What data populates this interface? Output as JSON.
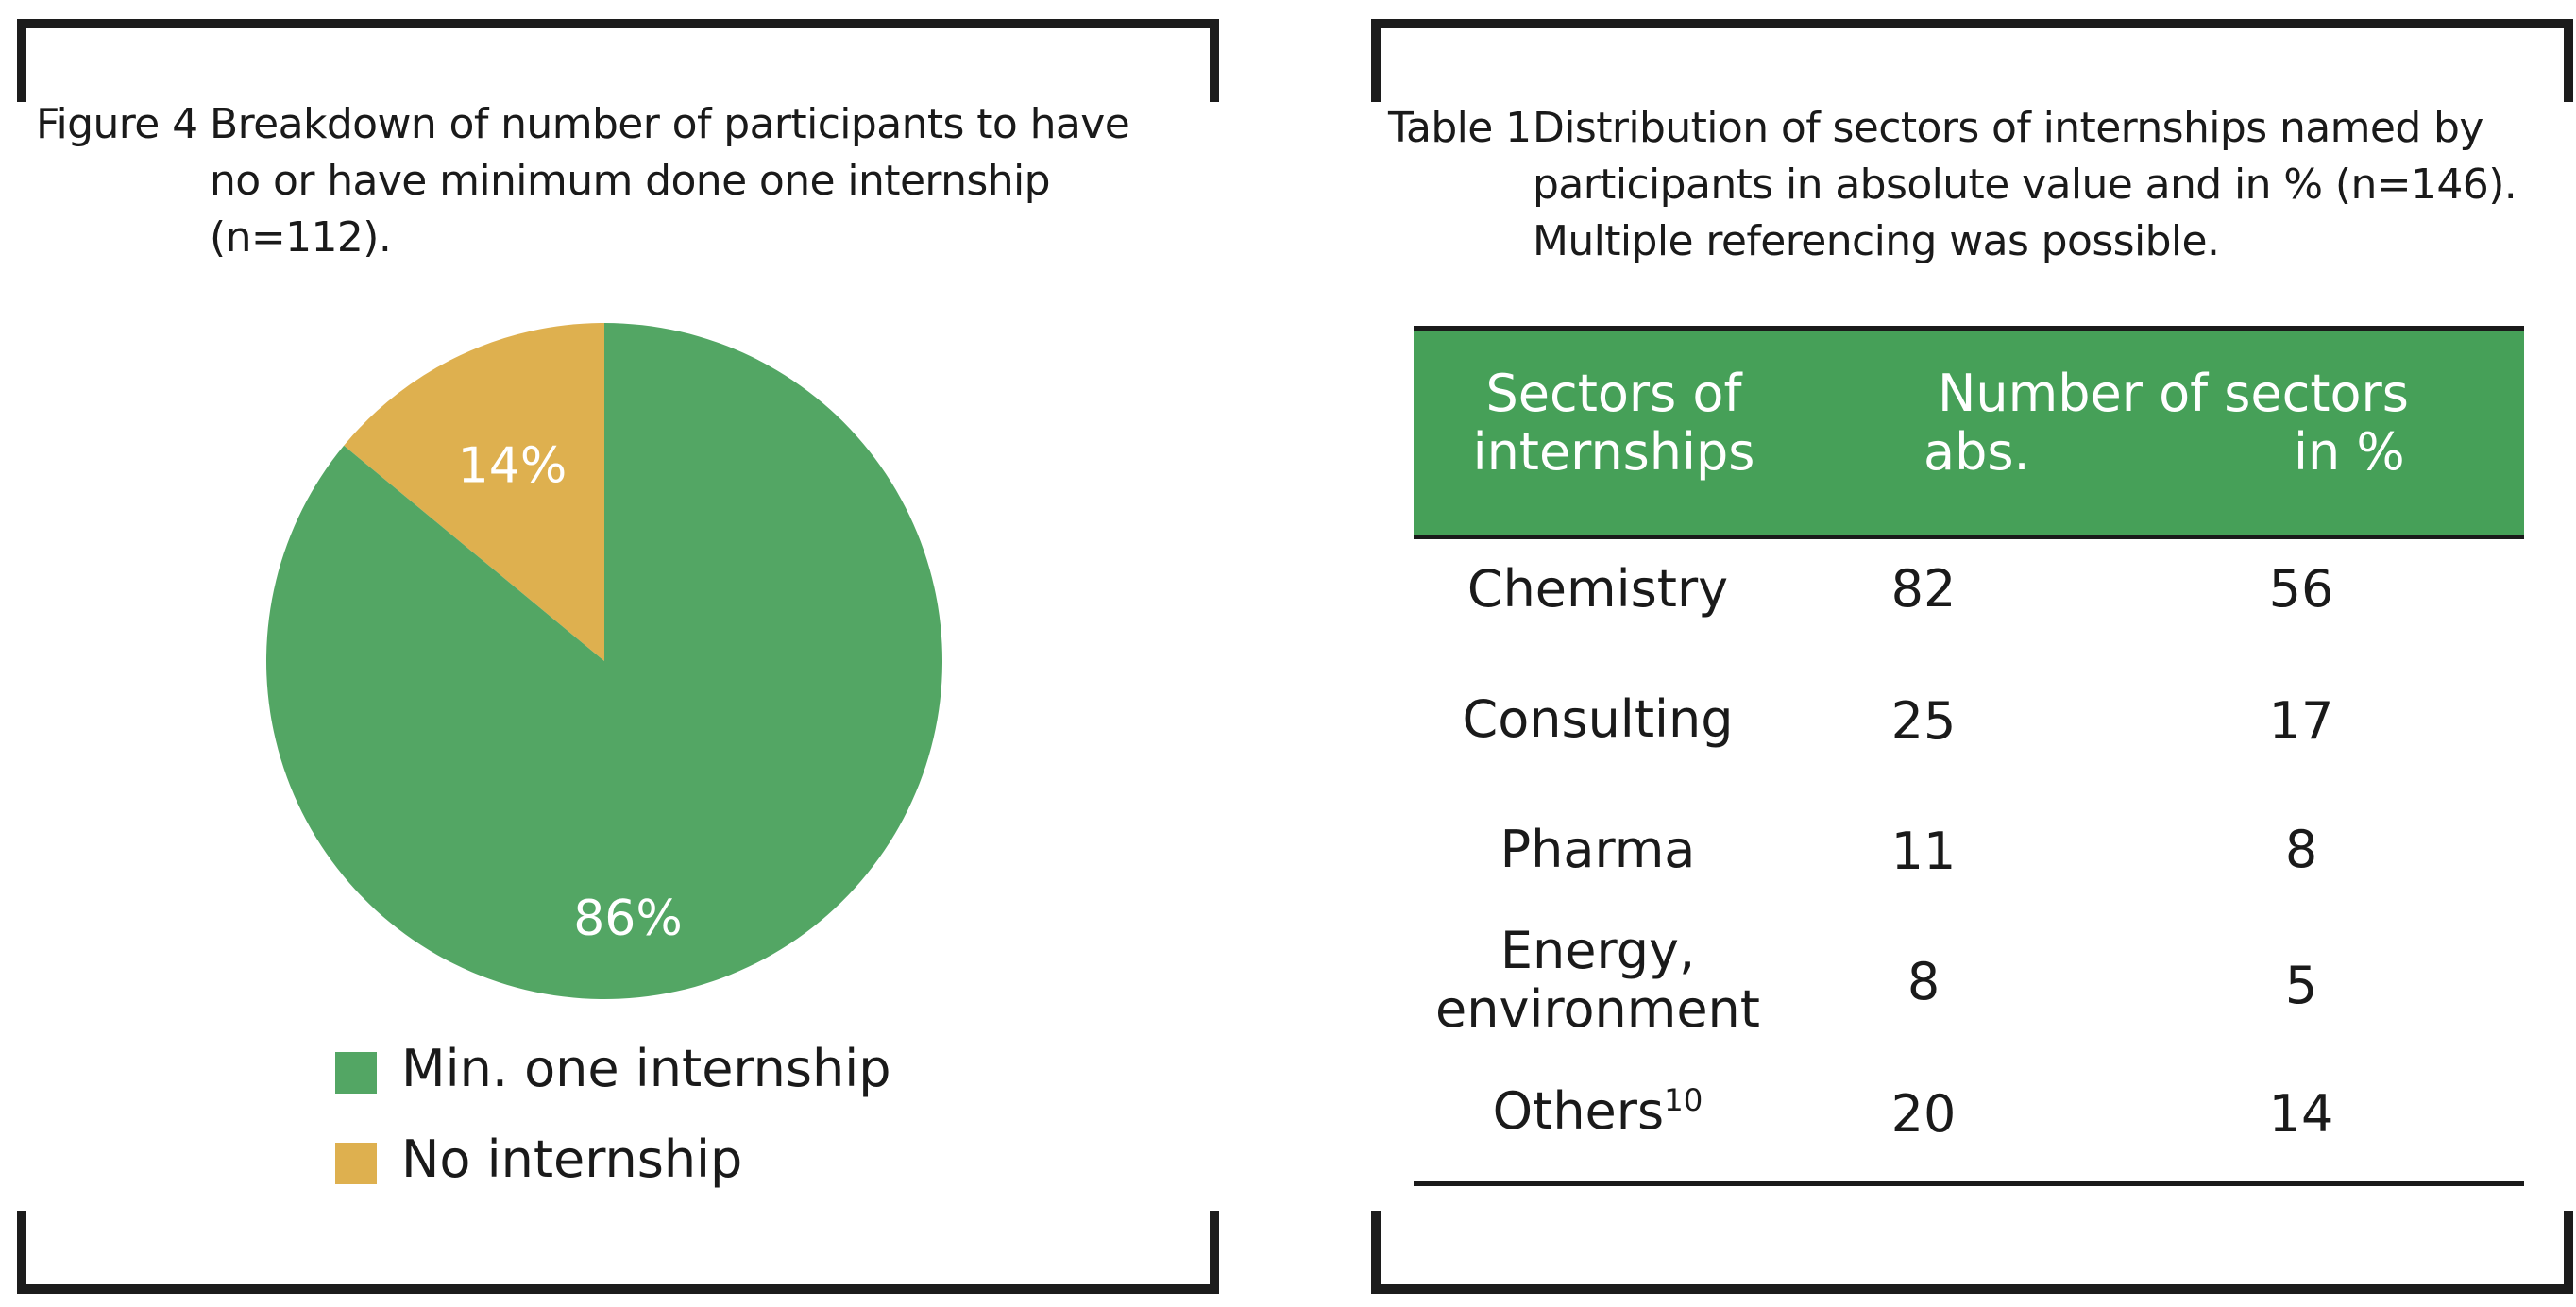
{
  "figure": {
    "label": "Figure 4",
    "caption": "Breakdown of number of participants to have\nno or have minimum done one internship\n(n=112)."
  },
  "table": {
    "label": "Table 1",
    "caption": "Distribution of sectors of internships named by\nparticipants in absolute value and in % (n=146).\nMultiple referencing was possible.",
    "header": {
      "sector": "Sectors of\ninternships",
      "group": "Number of sectors",
      "abs": "abs.",
      "pct": "in %"
    },
    "rows": [
      {
        "sector": "Chemistry",
        "abs": "82",
        "pct": "56"
      },
      {
        "sector": "Consulting",
        "abs": "25",
        "pct": "17"
      },
      {
        "sector": "Pharma",
        "abs": "11",
        "pct": "8"
      },
      {
        "sector": "Energy,\nenvironment",
        "abs": "8",
        "pct": "5"
      },
      {
        "sector": "Others",
        "sector_sup": "10",
        "abs": "20",
        "pct": "14"
      }
    ]
  },
  "chart_data": {
    "type": "pie",
    "title": "Breakdown of number of participants to have no or have minimum done one internship (n=112).",
    "series": [
      {
        "name": "Min. one internship",
        "value": 86,
        "label": "86%",
        "color": "#53a664"
      },
      {
        "name": "No internship",
        "value": 14,
        "label": "14%",
        "color": "#deb04f"
      }
    ],
    "legend_position": "bottom-left"
  }
}
